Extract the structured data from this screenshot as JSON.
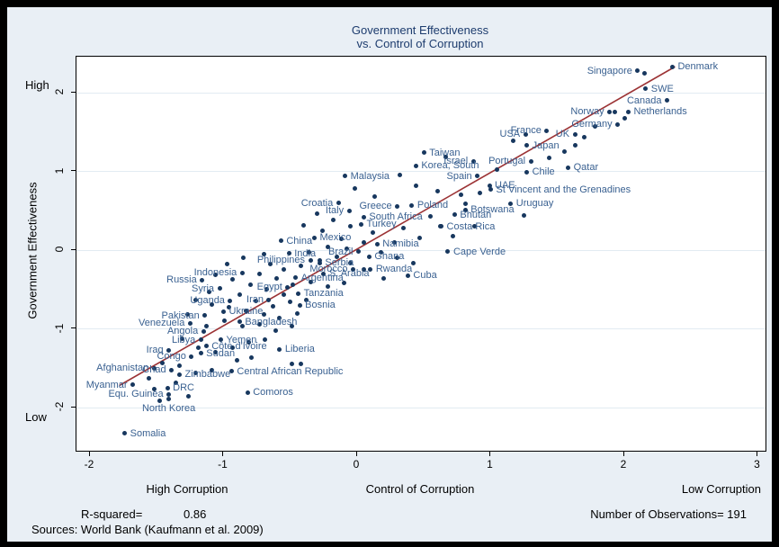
{
  "chart_data": {
    "type": "scatter",
    "title": "Government Effectiveness vs. Control of Corruption",
    "title_line1": "Government Effectiveness",
    "title_line2": "vs. Control of Corruption",
    "xlabel": "Control of Corruption",
    "ylabel": "Government Effectiveness",
    "x_end_labels": {
      "left": "High Corruption",
      "right": "Low Corruption"
    },
    "y_end_labels": {
      "top": "High",
      "bottom": "Low"
    },
    "xticks": [
      -2,
      -1,
      0,
      1,
      2,
      3
    ],
    "yticks": [
      -2,
      -1,
      0,
      1,
      2
    ],
    "xlim": [
      -2.35,
      3.05
    ],
    "ylim": [
      -2.45,
      2.45
    ],
    "grid": "horizontal-only",
    "legend": "none",
    "regression_line": {
      "x1": -1.78,
      "y1": -1.72,
      "x2": 2.38,
      "y2": 2.33
    },
    "stats": {
      "r_squared_label": "R-squared=",
      "r_squared_value": "0.86",
      "observations_label": "Number of Observations=",
      "observations_value": "191"
    },
    "source": "Sources: World Bank (Kaufmann et al. 2009)",
    "labeled_points": [
      {
        "name": "Denmark",
        "x": 2.36,
        "y": 2.33,
        "side": "right"
      },
      {
        "name": "Singapore",
        "x": 2.1,
        "y": 2.28,
        "side": "left"
      },
      {
        "name": "SWE",
        "x": 2.16,
        "y": 2.05,
        "side": "right"
      },
      {
        "name": "Canada",
        "x": 2.32,
        "y": 1.9,
        "side": "left"
      },
      {
        "name": "Netherlands",
        "x": 2.03,
        "y": 1.76,
        "side": "right"
      },
      {
        "name": "Norway",
        "x": 1.89,
        "y": 1.76,
        "side": "left"
      },
      {
        "name": "Germany",
        "x": 1.95,
        "y": 1.6,
        "side": "left"
      },
      {
        "name": "France",
        "x": 1.42,
        "y": 1.52,
        "side": "left"
      },
      {
        "name": "UK",
        "x": 1.63,
        "y": 1.47,
        "side": "left"
      },
      {
        "name": "USA",
        "x": 1.26,
        "y": 1.47,
        "side": "left"
      },
      {
        "name": "Japan",
        "x": 1.27,
        "y": 1.33,
        "side": "right"
      },
      {
        "name": "Taiwan",
        "x": 0.5,
        "y": 1.24,
        "side": "right"
      },
      {
        "name": "Israel",
        "x": 0.87,
        "y": 1.13,
        "side": "left"
      },
      {
        "name": "Portugal",
        "x": 1.3,
        "y": 1.13,
        "side": "left"
      },
      {
        "name": "Chile",
        "x": 1.27,
        "y": 0.99,
        "side": "right"
      },
      {
        "name": "Qatar",
        "x": 1.58,
        "y": 1.05,
        "side": "right"
      },
      {
        "name": "Korea, South",
        "x": 0.44,
        "y": 1.07,
        "side": "right"
      },
      {
        "name": "Spain",
        "x": 0.9,
        "y": 0.94,
        "side": "left"
      },
      {
        "name": "UAE",
        "x": 0.99,
        "y": 0.82,
        "side": "right"
      },
      {
        "name": "St Vincent and the Grenadines",
        "x": 1.0,
        "y": 0.77,
        "side": "right"
      },
      {
        "name": "Malaysia",
        "x": -0.09,
        "y": 0.94,
        "side": "right"
      },
      {
        "name": "Uruguay",
        "x": 1.15,
        "y": 0.59,
        "side": "right"
      },
      {
        "name": "Croatia",
        "x": -0.14,
        "y": 0.6,
        "side": "left"
      },
      {
        "name": "Italy",
        "x": -0.06,
        "y": 0.5,
        "side": "left"
      },
      {
        "name": "Greece",
        "x": 0.3,
        "y": 0.56,
        "side": "left"
      },
      {
        "name": "Poland",
        "x": 0.41,
        "y": 0.57,
        "side": "right"
      },
      {
        "name": "Botswana",
        "x": 0.81,
        "y": 0.51,
        "side": "right"
      },
      {
        "name": "Bhutan",
        "x": 0.73,
        "y": 0.45,
        "side": "right"
      },
      {
        "name": "South Africa",
        "x": 0.05,
        "y": 0.42,
        "side": "right"
      },
      {
        "name": "Turkey",
        "x": 0.03,
        "y": 0.33,
        "side": "right"
      },
      {
        "name": "Costa Rica",
        "x": 0.63,
        "y": 0.3,
        "side": "right"
      },
      {
        "name": "Mexico",
        "x": -0.32,
        "y": 0.16,
        "side": "right"
      },
      {
        "name": "China",
        "x": -0.57,
        "y": 0.12,
        "side": "right"
      },
      {
        "name": "Namibia",
        "x": 0.15,
        "y": 0.08,
        "side": "right"
      },
      {
        "name": "Cape Verde",
        "x": 0.68,
        "y": -0.02,
        "side": "right"
      },
      {
        "name": "India",
        "x": -0.51,
        "y": -0.04,
        "side": "right"
      },
      {
        "name": "Brazil",
        "x": 0.01,
        "y": -0.02,
        "side": "left"
      },
      {
        "name": "Ghana",
        "x": 0.09,
        "y": -0.08,
        "side": "right"
      },
      {
        "name": "Philippines",
        "x": -0.35,
        "y": -0.13,
        "side": "left"
      },
      {
        "name": "Serbia",
        "x": -0.28,
        "y": -0.16,
        "side": "right"
      },
      {
        "name": "Morocco",
        "x": -0.03,
        "y": -0.24,
        "side": "left"
      },
      {
        "name": "Rwanda",
        "x": 0.1,
        "y": -0.24,
        "side": "right"
      },
      {
        "name": "Cuba",
        "x": 0.38,
        "y": -0.32,
        "side": "right"
      },
      {
        "name": "S. Arabia",
        "x": -0.25,
        "y": -0.3,
        "side": "right"
      },
      {
        "name": "Argentina",
        "x": -0.46,
        "y": -0.35,
        "side": "right"
      },
      {
        "name": "Egypt",
        "x": -0.52,
        "y": -0.47,
        "side": "left"
      },
      {
        "name": "Tanzania",
        "x": -0.44,
        "y": -0.55,
        "side": "right"
      },
      {
        "name": "Iran",
        "x": -0.66,
        "y": -0.63,
        "side": "left"
      },
      {
        "name": "Bosnia",
        "x": -0.43,
        "y": -0.7,
        "side": "right"
      },
      {
        "name": "Indonesia",
        "x": -0.86,
        "y": -0.29,
        "side": "left"
      },
      {
        "name": "Russia",
        "x": -1.16,
        "y": -0.38,
        "side": "left"
      },
      {
        "name": "Syria",
        "x": -1.03,
        "y": -0.49,
        "side": "left"
      },
      {
        "name": "Uganda",
        "x": -0.95,
        "y": -0.64,
        "side": "left"
      },
      {
        "name": "Ukraine",
        "x": -1.0,
        "y": -0.78,
        "side": "right"
      },
      {
        "name": "Pakistan",
        "x": -1.14,
        "y": -0.83,
        "side": "left"
      },
      {
        "name": "Venezuela",
        "x": -1.25,
        "y": -0.93,
        "side": "left"
      },
      {
        "name": "Bangladesh",
        "x": -0.88,
        "y": -0.91,
        "side": "right"
      },
      {
        "name": "Angola",
        "x": -1.15,
        "y": -1.03,
        "side": "left"
      },
      {
        "name": "Libya",
        "x": -1.17,
        "y": -1.14,
        "side": "left"
      },
      {
        "name": "Yemen",
        "x": -1.02,
        "y": -1.14,
        "side": "right"
      },
      {
        "name": "Côte d'Ivoire",
        "x": -1.13,
        "y": -1.22,
        "side": "right"
      },
      {
        "name": "Liberia",
        "x": -0.58,
        "y": -1.26,
        "side": "right"
      },
      {
        "name": "Iraq",
        "x": -1.41,
        "y": -1.27,
        "side": "left"
      },
      {
        "name": "Congo",
        "x": -1.24,
        "y": -1.35,
        "side": "left"
      },
      {
        "name": "Sudan",
        "x": -1.17,
        "y": -1.31,
        "side": "right"
      },
      {
        "name": "Afghanistan",
        "x": -1.52,
        "y": -1.5,
        "side": "left"
      },
      {
        "name": "Chad",
        "x": -1.39,
        "y": -1.52,
        "side": "left"
      },
      {
        "name": "Zimbabwe",
        "x": -1.33,
        "y": -1.58,
        "side": "right"
      },
      {
        "name": "Central African Republic",
        "x": -0.94,
        "y": -1.54,
        "side": "right"
      },
      {
        "name": "Myanmar",
        "x": -1.68,
        "y": -1.71,
        "side": "left"
      },
      {
        "name": "DRC",
        "x": -1.42,
        "y": -1.75,
        "side": "right"
      },
      {
        "name": "Equ. Guinea",
        "x": -1.41,
        "y": -1.83,
        "side": "left"
      },
      {
        "name": "North Korea",
        "x": -1.41,
        "y": -1.89,
        "side": "below"
      },
      {
        "name": "Comoros",
        "x": -0.82,
        "y": -1.81,
        "side": "right"
      },
      {
        "name": "Somalia",
        "x": -1.74,
        "y": -2.33,
        "side": "right"
      }
    ],
    "unlabeled_points": [
      [
        2.15,
        2.25
      ],
      [
        1.93,
        1.76
      ],
      [
        2.0,
        1.68
      ],
      [
        1.78,
        1.57
      ],
      [
        1.7,
        1.44
      ],
      [
        1.63,
        1.33
      ],
      [
        1.55,
        1.25
      ],
      [
        1.44,
        1.17
      ],
      [
        1.17,
        1.39
      ],
      [
        1.05,
        1.02
      ],
      [
        0.66,
        1.18
      ],
      [
        0.32,
        0.95
      ],
      [
        0.92,
        0.73
      ],
      [
        0.78,
        0.7
      ],
      [
        0.6,
        0.75
      ],
      [
        0.44,
        0.82
      ],
      [
        1.25,
        0.44
      ],
      [
        0.81,
        0.59
      ],
      [
        0.13,
        0.68
      ],
      [
        -0.02,
        0.78
      ],
      [
        0.55,
        0.43
      ],
      [
        0.35,
        0.28
      ],
      [
        0.47,
        0.16
      ],
      [
        0.28,
        0.1
      ],
      [
        0.12,
        0.22
      ],
      [
        -0.05,
        0.3
      ],
      [
        -0.18,
        0.38
      ],
      [
        -0.3,
        0.46
      ],
      [
        -0.26,
        0.25
      ],
      [
        -0.4,
        0.32
      ],
      [
        -0.12,
        0.14
      ],
      [
        -0.22,
        0.04
      ],
      [
        -0.36,
        -0.03
      ],
      [
        -0.08,
        0.02
      ],
      [
        0.05,
        0.1
      ],
      [
        0.18,
        -0.03
      ],
      [
        0.3,
        -0.1
      ],
      [
        0.42,
        -0.16
      ],
      [
        0.2,
        -0.36
      ],
      [
        0.05,
        -0.24
      ],
      [
        -0.05,
        -0.16
      ],
      [
        -0.15,
        -0.08
      ],
      [
        -0.28,
        -0.13
      ],
      [
        -0.42,
        -0.2
      ],
      [
        -0.55,
        -0.24
      ],
      [
        -0.65,
        -0.18
      ],
      [
        -0.73,
        -0.3
      ],
      [
        -0.6,
        -0.36
      ],
      [
        -0.48,
        -0.44
      ],
      [
        -0.35,
        -0.4
      ],
      [
        -0.22,
        -0.46
      ],
      [
        -0.1,
        -0.42
      ],
      [
        -0.55,
        -0.57
      ],
      [
        -0.68,
        -0.5
      ],
      [
        -0.8,
        -0.44
      ],
      [
        -0.93,
        -0.37
      ],
      [
        -1.06,
        -0.31
      ],
      [
        -0.88,
        -0.57
      ],
      [
        -0.76,
        -0.64
      ],
      [
        -0.63,
        -0.71
      ],
      [
        -0.5,
        -0.66
      ],
      [
        -0.38,
        -0.63
      ],
      [
        -0.45,
        -0.8
      ],
      [
        -0.58,
        -0.86
      ],
      [
        -0.7,
        -0.82
      ],
      [
        -0.83,
        -0.77
      ],
      [
        -0.96,
        -0.73
      ],
      [
        -1.09,
        -0.69
      ],
      [
        -1.21,
        -0.63
      ],
      [
        -1.11,
        -0.53
      ],
      [
        -0.99,
        -0.9
      ],
      [
        -0.86,
        -0.97
      ],
      [
        -0.73,
        -0.94
      ],
      [
        -0.61,
        -1.02
      ],
      [
        -0.49,
        -0.97
      ],
      [
        -1.13,
        -0.97
      ],
      [
        -1.27,
        -0.82
      ],
      [
        -1.31,
        -1.12
      ],
      [
        -1.19,
        -1.24
      ],
      [
        -1.06,
        -1.3
      ],
      [
        -0.93,
        -1.24
      ],
      [
        -0.81,
        -1.17
      ],
      [
        -0.69,
        -1.14
      ],
      [
        -0.9,
        -1.4
      ],
      [
        -0.79,
        -1.37
      ],
      [
        -1.46,
        -1.43
      ],
      [
        -1.33,
        -1.47
      ],
      [
        -0.49,
        -1.44
      ],
      [
        -0.42,
        -1.44
      ],
      [
        -1.56,
        -1.63
      ],
      [
        -1.21,
        -1.56
      ],
      [
        -1.09,
        -1.53
      ],
      [
        -1.36,
        -1.69
      ],
      [
        -1.52,
        -1.77
      ],
      [
        -1.48,
        -1.91
      ],
      [
        -1.26,
        -1.86
      ],
      [
        -0.97,
        -0.18
      ],
      [
        -0.85,
        -0.1
      ],
      [
        -0.7,
        -0.05
      ],
      [
        0.62,
        0.3
      ],
      [
        0.72,
        0.18
      ],
      [
        0.88,
        0.3
      ]
    ]
  },
  "colors": {
    "page_background": "#000000",
    "panel_background": "#e9eff5",
    "plot_background": "#ffffff",
    "point": "#17375e",
    "point_label": "#3a6191",
    "title_text": "#1d3c6e",
    "axis_text": "#000000",
    "gridline": "#e2ebf2",
    "regression_line": "#9c3335"
  }
}
